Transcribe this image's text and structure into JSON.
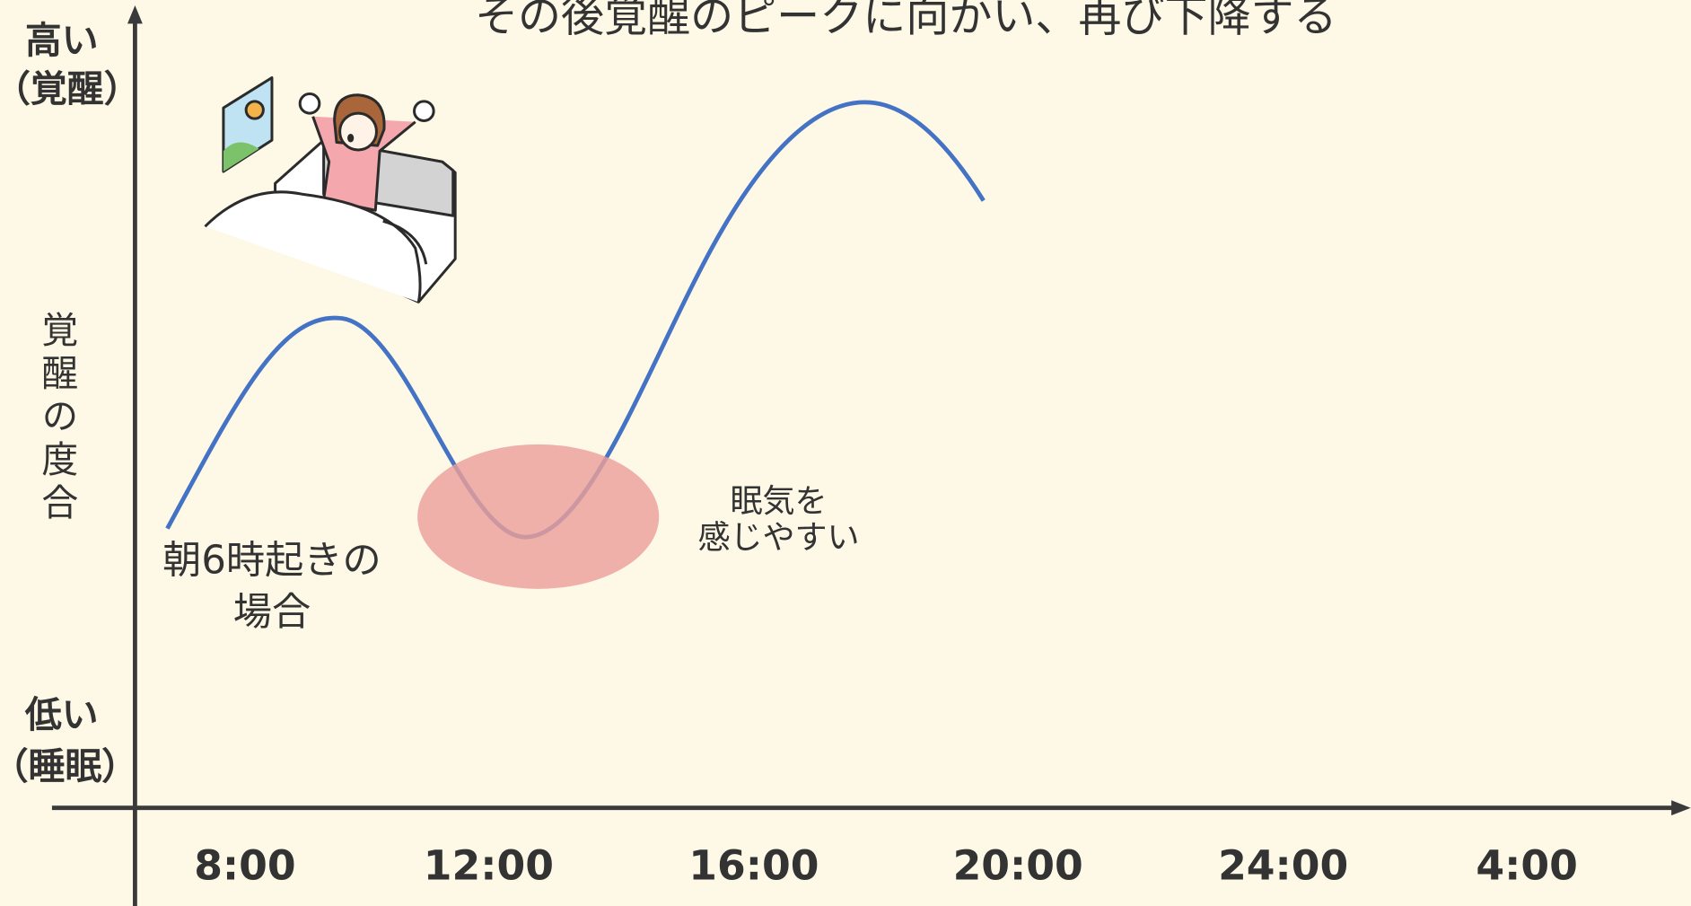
{
  "title": "その後覚醒のピークに向かい、再び下降する",
  "y_axis": {
    "high": "高い",
    "high_note": "（覚醒）",
    "label": "覚醒の度合",
    "low": "低い",
    "low_note": "（睡眠）"
  },
  "x_axis": {
    "ticks": [
      "8:00",
      "12:00",
      "16:00",
      "20:00",
      "24:00",
      "4:00"
    ]
  },
  "annotations": {
    "case": [
      "朝6時起きの",
      "場合"
    ],
    "dip": [
      "眠気を",
      "感じやすい"
    ]
  }
}
